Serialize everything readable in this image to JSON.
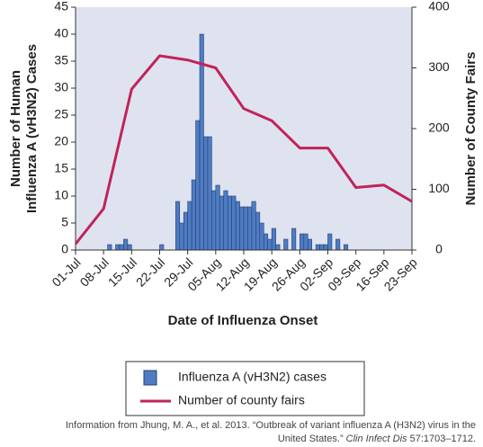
{
  "chart_data": {
    "type": "bar",
    "x_label": "Date of Influenza Onset",
    "y_label": [
      "Number of Human",
      "Influenza A (vH3N2) Cases"
    ],
    "y2_label": "Number of County Fairs",
    "xlim": [
      0,
      84
    ],
    "xticks": [
      {
        "value": 0,
        "label": "01-Jul"
      },
      {
        "value": 7,
        "label": "08-Jul"
      },
      {
        "value": 14,
        "label": "15-Jul"
      },
      {
        "value": 21,
        "label": "22-Jul"
      },
      {
        "value": 28,
        "label": "29-Jul"
      },
      {
        "value": 35,
        "label": "05-Aug"
      },
      {
        "value": 42,
        "label": "12-Aug"
      },
      {
        "value": 49,
        "label": "19-Aug"
      },
      {
        "value": 56,
        "label": "26-Aug"
      },
      {
        "value": 63,
        "label": "02-Sep"
      },
      {
        "value": 70,
        "label": "09-Sep"
      },
      {
        "value": 77,
        "label": "16-Sep"
      },
      {
        "value": 84,
        "label": "23-Sep"
      }
    ],
    "ylim": [
      0,
      45
    ],
    "yticks": [
      0,
      5,
      10,
      15,
      20,
      25,
      30,
      35,
      40,
      45
    ],
    "y2lim": [
      0,
      400
    ],
    "y2ticks": [
      0,
      100,
      200,
      300,
      400
    ],
    "legend": "bottom",
    "series": [
      {
        "name": "Influenza A (vH3N2) cases",
        "color": "#4f7cc0",
        "type": "bar",
        "x": [
          8,
          10,
          11,
          12,
          13,
          21,
          25,
          26,
          27,
          28,
          29,
          30,
          31,
          32,
          33,
          34,
          35,
          36,
          37,
          38,
          39,
          40,
          41,
          42,
          43,
          44,
          45,
          46,
          47,
          48,
          49,
          50,
          52,
          54,
          56,
          57,
          58,
          60,
          61,
          62,
          63,
          65,
          67
        ],
        "values": [
          1,
          1,
          1,
          2,
          1,
          1,
          9,
          5,
          7,
          9,
          13,
          24,
          40,
          21,
          21,
          11,
          12,
          10,
          11,
          10,
          10,
          9,
          8,
          8,
          8,
          9,
          7,
          5,
          3,
          2,
          4,
          1,
          2,
          4,
          3,
          3,
          2,
          1,
          1,
          1,
          3,
          2,
          1
        ]
      },
      {
        "name": "Number of county fairs",
        "color": "#c0245a",
        "type": "line",
        "axis": "y2",
        "x": [
          0,
          7,
          14,
          21,
          28,
          35,
          42,
          49,
          56,
          63,
          70,
          77,
          84
        ],
        "values": [
          10,
          68,
          265,
          320,
          313,
          300,
          233,
          213,
          168,
          168,
          103,
          107,
          80
        ]
      }
    ],
    "source": [
      "Information from Jhung, M. A., et al. 2013. “Outbreak of variant influenza A (H3N2) virus in the",
      "United States.” ",
      "Clin Infect Dis",
      " 57:1703–1712."
    ]
  }
}
